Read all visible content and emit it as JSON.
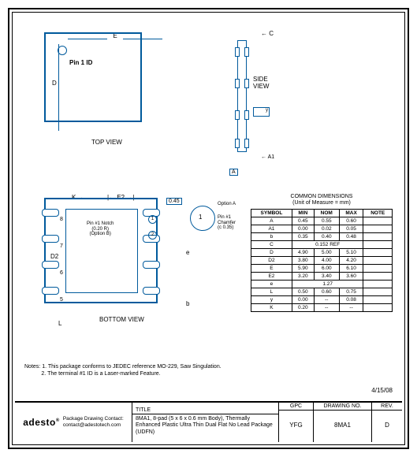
{
  "views": {
    "top_label": "TOP VIEW",
    "side_label": "SIDE VIEW",
    "bottom_label": "BOTTOM VIEW",
    "pin1_label": "Pin 1 ID"
  },
  "dims": {
    "E": "E",
    "D": "D",
    "C": "C",
    "A": "A",
    "A1": "A1",
    "K": "K",
    "E2": "E2",
    "D2": "D2",
    "L": "L",
    "e": "e",
    "b": "b",
    "v045": "0.45",
    "y": "y"
  },
  "bottom": {
    "notch": "Pin #1 Notch\n(0.20 R)\n(Option B)",
    "optionA": "Option A",
    "chamfer": "Pin #1\nChamfer\n(c 0.35)",
    "pins": [
      "8",
      "7",
      "6",
      "5"
    ],
    "detail_nums": [
      "1",
      "2"
    ]
  },
  "sidebox": {
    "y": "y"
  },
  "table": {
    "title1": "COMMON DIMENSIONS",
    "title2": "(Unit of Measure = mm)",
    "headers": [
      "SYMBOL",
      "MIN",
      "NOM",
      "MAX",
      "NOTE"
    ],
    "rows": [
      [
        "A",
        "0.45",
        "0.55",
        "0.60",
        ""
      ],
      [
        "A1",
        "0.00",
        "0.02",
        "0.05",
        ""
      ],
      [
        "b",
        "0.35",
        "0.40",
        "0.48",
        ""
      ],
      [
        "C",
        {
          "span": 3,
          "text": "0.152 REF"
        },
        ""
      ],
      [
        "D",
        "4.90",
        "5.00",
        "5.10",
        ""
      ],
      [
        "D2",
        "3.80",
        "4.00",
        "4.20",
        ""
      ],
      [
        "E",
        "5.90",
        "6.00",
        "6.10",
        ""
      ],
      [
        "E2",
        "3.20",
        "3.40",
        "3.60",
        ""
      ],
      [
        "e",
        {
          "span": 3,
          "text": "1.27"
        },
        ""
      ],
      [
        "L",
        "0.50",
        "0.60",
        "0.75",
        ""
      ],
      [
        "y",
        "0.00",
        "--",
        "0.08",
        ""
      ],
      [
        "K",
        "0.20",
        "--",
        "--",
        ""
      ]
    ]
  },
  "notes": {
    "prefix": "Notes:",
    "n1": "1.  This package conforms to JEDEC reference MO-229, Saw Singulation.",
    "n2": "2.  The terminal #1 ID is a Laser-marked Feature."
  },
  "date": "4/15/08",
  "titleblock": {
    "logo": "adesto",
    "contact_label": "Package Drawing Contact:",
    "contact_email": "contact@adestotech.com",
    "title_hd": "TITLE",
    "title_text": "8MA1, 8-pad (5 x 6 x 0.6 mm Body), Thermally Enhanced Plastic Ultra Thin Dual Flat No Lead Package (UDFN)",
    "gpc_hd": "GPC",
    "gpc": "YFG",
    "draw_hd": "DRAWING NO.",
    "draw": "8MA1",
    "rev_hd": "REV.",
    "rev": "D"
  },
  "colors": {
    "line": "#005a9c",
    "text": "#000",
    "bg": "#fff"
  }
}
